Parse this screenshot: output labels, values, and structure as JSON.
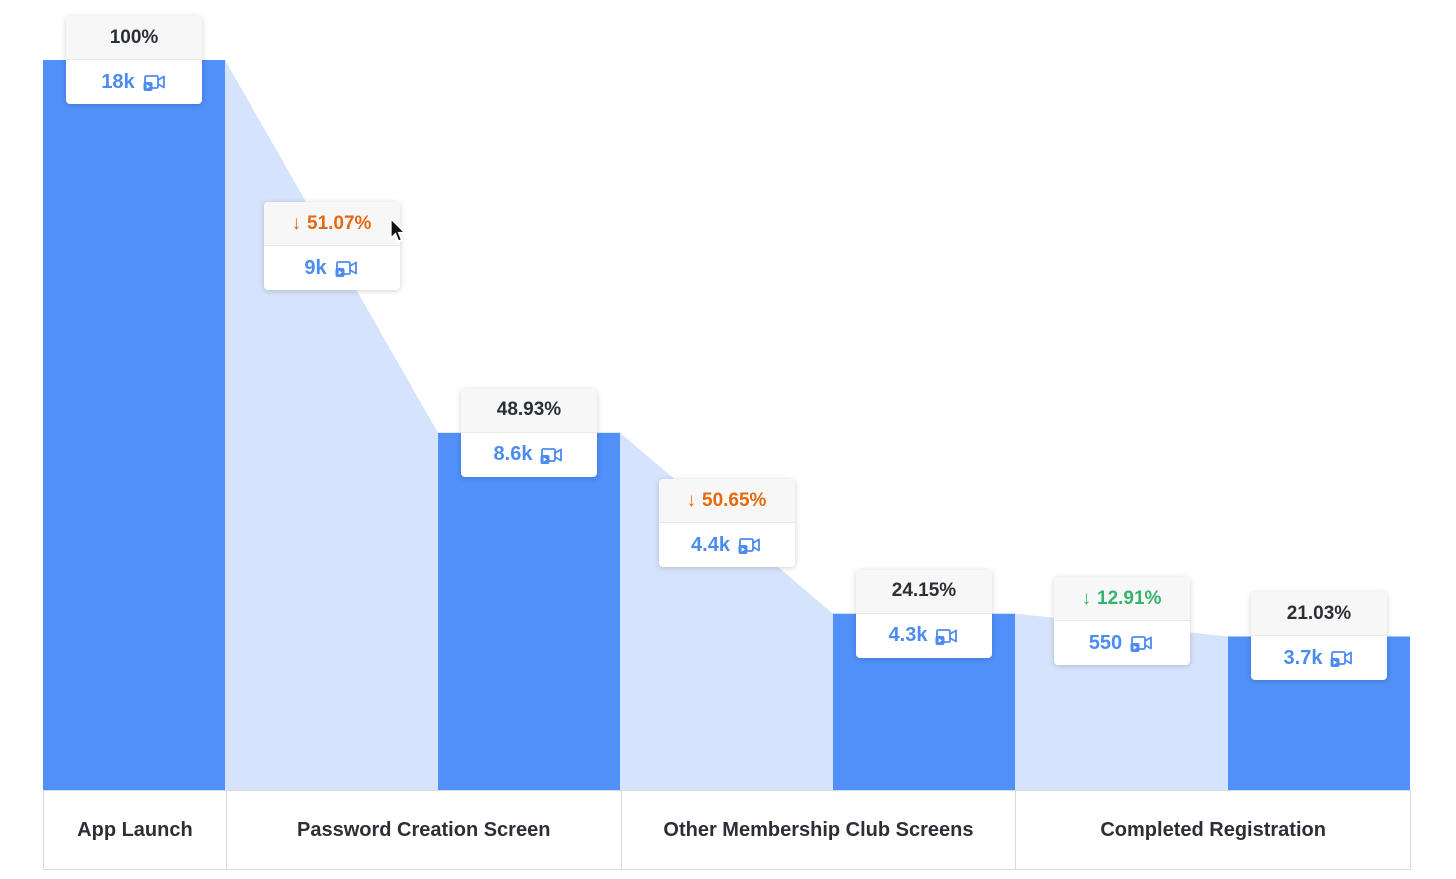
{
  "colors": {
    "bar": "#5090f8",
    "flow": "#d6e3fc",
    "drop_orange": "#e56a0f",
    "drop_green": "#34b36b",
    "value_blue": "#4c8bf0"
  },
  "icons": {
    "recording": "video-icon",
    "drop": "arrow-down-icon",
    "pointer": "cursor-icon"
  },
  "stages": [
    {
      "label": "App Launch",
      "percent": "100%",
      "count": "18k"
    },
    {
      "label": "Password Creation Screen",
      "percent": "48.93%",
      "count": "8.6k"
    },
    {
      "label": "Other Membership Club Screens",
      "percent": "24.15%",
      "count": "4.3k"
    },
    {
      "label": "Completed Registration",
      "percent": "21.03%",
      "count": "3.7k"
    }
  ],
  "dropoffs": [
    {
      "arrow": "↓",
      "percent": "51.07%",
      "count": "9k"
    },
    {
      "arrow": "↓",
      "percent": "50.65%",
      "count": "4.4k"
    },
    {
      "arrow": "↓",
      "percent": "12.91%",
      "count": "550"
    }
  ],
  "chart_data": {
    "type": "bar",
    "categories": [
      "App Launch",
      "Password Creation Screen",
      "Other Membership Club Screens",
      "Completed Registration"
    ],
    "series": [
      {
        "values": [
          100,
          48.93,
          24.15,
          21.03
        ]
      }
    ],
    "counts": [
      "18k",
      "8.6k",
      "4.3k",
      "3.7k"
    ],
    "dropoff_percents": [
      51.07,
      50.65,
      12.91
    ],
    "dropoff_counts": [
      "9k",
      "4.4k",
      "550"
    ],
    "ylim": [
      0,
      100
    ],
    "grid": false,
    "legend": "none"
  }
}
